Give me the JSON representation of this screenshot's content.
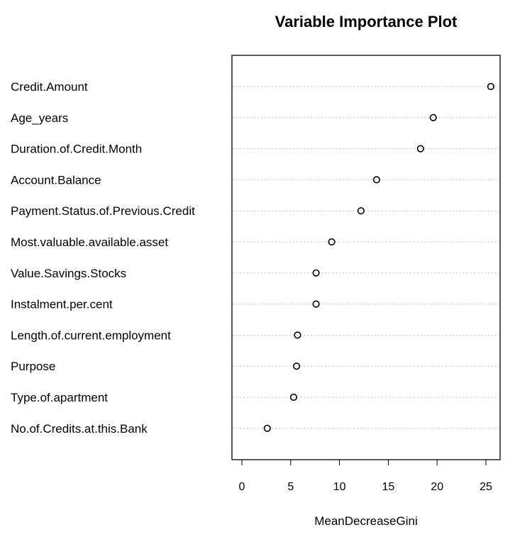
{
  "chart_data": {
    "type": "scatter",
    "title": "Variable Importance Plot",
    "xlabel": "MeanDecreaseGini",
    "ylabel": "",
    "xlim": [
      0,
      26
    ],
    "xticks": [
      "0",
      "5",
      "10",
      "15",
      "20",
      "25"
    ],
    "grid": "horizontal dotted lines",
    "legend": "none",
    "colors": {
      "point": "#000000",
      "grid": "#bebebe",
      "frame": "#000000"
    },
    "categories": [
      "Credit.Amount",
      "Age_years",
      "Duration.of.Credit.Month",
      "Account.Balance",
      "Payment.Status.of.Previous.Credit",
      "Most.valuable.available.asset",
      "Value.Savings.Stocks",
      "Instalment.per.cent",
      "Length.of.current.employment",
      "Purpose",
      "Type.of.apartment",
      "No.of.Credits.at.this.Bank"
    ],
    "values": [
      25.5,
      19.6,
      18.3,
      13.8,
      12.2,
      9.2,
      7.6,
      7.6,
      5.7,
      5.6,
      5.3,
      2.6
    ]
  }
}
